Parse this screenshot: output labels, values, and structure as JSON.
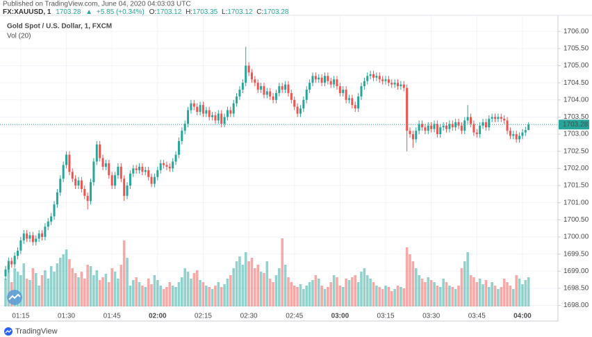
{
  "header": {
    "published": "Published on TradingView.com, June 04, 2020 04:03:03 UTC",
    "symbol": "FX:XAUUSD, 1",
    "last": "1703.28",
    "change_arrow": "▲",
    "change": "+5.85 (+0.34%)",
    "ohlc": [
      {
        "label": "O:",
        "value": "1703.12"
      },
      {
        "label": "H:",
        "value": "1703.35"
      },
      {
        "label": "L:",
        "value": "1703.12"
      },
      {
        "label": "C:",
        "value": "1703.28"
      }
    ]
  },
  "footer": {
    "brand": "TradingView"
  },
  "chart_data": {
    "type": "candlestick",
    "title": "Gold Spot / U.S. Dollar, 1, FXCM",
    "volume_label": "Vol (20)",
    "up_color": "#26a69a",
    "down_color": "#ef5350",
    "grid": true,
    "last_price": 1703.28,
    "last_price_color": "#26a69a",
    "ylim": [
      1697.85,
      1706.45
    ],
    "yticks": [
      {
        "value": 1698,
        "label": "1698.00"
      },
      {
        "value": 1698.5,
        "label": "1698.50"
      },
      {
        "value": 1699,
        "label": "1699.00"
      },
      {
        "value": 1699.5,
        "label": "1699.50"
      },
      {
        "value": 1700,
        "label": "1700.00"
      },
      {
        "value": 1700.5,
        "label": "1700.50"
      },
      {
        "value": 1701,
        "label": "1701.00"
      },
      {
        "value": 1701.5,
        "label": "1701.50"
      },
      {
        "value": 1702,
        "label": "1702.00"
      },
      {
        "value": 1702.5,
        "label": "1702.50"
      },
      {
        "value": 1703,
        "label": "1703.00"
      },
      {
        "value": 1703.5,
        "label": "1703.50"
      },
      {
        "value": 1704,
        "label": "1704.00"
      },
      {
        "value": 1704.5,
        "label": "1704.50"
      },
      {
        "value": 1705,
        "label": "1705.00"
      },
      {
        "value": 1705.5,
        "label": "1705.50"
      },
      {
        "value": 1706,
        "label": "1706.00"
      }
    ],
    "categories": [
      null,
      null,
      null,
      null,
      null,
      "01:15",
      null,
      null,
      null,
      null,
      null,
      null,
      null,
      null,
      null,
      null,
      null,
      null,
      null,
      null,
      "01:30",
      null,
      null,
      null,
      null,
      null,
      null,
      null,
      null,
      null,
      null,
      null,
      null,
      null,
      null,
      "01:45",
      null,
      null,
      null,
      null,
      null,
      null,
      null,
      null,
      null,
      null,
      null,
      null,
      null,
      null,
      "02:00",
      null,
      null,
      null,
      null,
      null,
      null,
      null,
      null,
      null,
      null,
      null,
      null,
      null,
      null,
      "02:15",
      null,
      null,
      null,
      null,
      null,
      null,
      null,
      null,
      null,
      null,
      null,
      null,
      null,
      null,
      "02:30",
      null,
      null,
      null,
      null,
      null,
      null,
      null,
      null,
      null,
      null,
      null,
      null,
      null,
      null,
      "02:45",
      null,
      null,
      null,
      null,
      null,
      null,
      null,
      null,
      null,
      null,
      null,
      null,
      null,
      null,
      "03:00",
      null,
      null,
      null,
      null,
      null,
      null,
      null,
      null,
      null,
      null,
      null,
      null,
      null,
      null,
      "03:15",
      null,
      null,
      null,
      null,
      null,
      null,
      null,
      null,
      null,
      null,
      null,
      null,
      null,
      null,
      "03:30",
      null,
      null,
      null,
      null,
      null,
      null,
      null,
      null,
      null,
      null,
      null,
      null,
      null,
      null,
      "03:45",
      null,
      null,
      null,
      null,
      null,
      null,
      null,
      null,
      null,
      null,
      null,
      null,
      null,
      null,
      "04:00",
      null,
      null
    ],
    "open": [
      1698.85,
      1699.05,
      1699.3,
      1699.2,
      1699.45,
      1699.6,
      1699.9,
      1700.1,
      1699.95,
      1700.05,
      1699.85,
      1699.95,
      1700.1,
      1700.0,
      1700.3,
      1700.45,
      1700.6,
      1700.95,
      1701.3,
      1701.7,
      1702.1,
      1702.4,
      1701.9,
      1701.7,
      1701.5,
      1701.65,
      1701.4,
      1701.2,
      1701.05,
      1701.6,
      1702.2,
      1702.7,
      1702.3,
      1702.05,
      1702.15,
      1701.8,
      1701.5,
      1701.8,
      1702.05,
      1701.7,
      1701.2,
      1701.5,
      1701.85,
      1702.0,
      1701.95,
      1702.05,
      1701.9,
      1701.95,
      1701.75,
      1701.55,
      1701.75,
      1701.95,
      1702.15,
      1702.1,
      1702.05,
      1702.0,
      1702.2,
      1702.4,
      1702.8,
      1703.1,
      1703.3,
      1703.7,
      1703.9,
      1703.8,
      1703.65,
      1703.85,
      1703.6,
      1703.7,
      1703.5,
      1703.55,
      1703.4,
      1703.6,
      1703.3,
      1703.5,
      1703.7,
      1703.6,
      1703.9,
      1704.1,
      1704.3,
      1704.5,
      1705.0,
      1704.8,
      1704.6,
      1704.5,
      1704.3,
      1704.4,
      1704.15,
      1704.25,
      1704.1,
      1704.0,
      1704.2,
      1704.4,
      1704.3,
      1704.45,
      1704.2,
      1704.0,
      1703.8,
      1703.6,
      1703.75,
      1704.0,
      1704.3,
      1704.5,
      1704.7,
      1704.6,
      1704.65,
      1704.5,
      1704.7,
      1704.55,
      1704.45,
      1704.6,
      1704.4,
      1704.2,
      1704.3,
      1704.0,
      1704.05,
      1703.85,
      1703.75,
      1704.1,
      1704.4,
      1704.55,
      1704.7,
      1704.75,
      1704.65,
      1704.7,
      1704.6,
      1704.55,
      1704.6,
      1704.5,
      1704.45,
      1704.5,
      1704.4,
      1704.45,
      1704.35,
      1703.1,
      1703.0,
      1702.85,
      1703.1,
      1703.3,
      1703.2,
      1703.1,
      1703.25,
      1703.15,
      1703.3,
      1703.0,
      1703.2,
      1703.25,
      1703.15,
      1703.3,
      1703.2,
      1703.35,
      1703.25,
      1703.1,
      1703.4,
      1703.5,
      1703.3,
      1703.05,
      1703.0,
      1703.25,
      1703.35,
      1703.2,
      1703.45,
      1703.5,
      1703.45,
      1703.5,
      1703.45,
      1703.4,
      1703.1,
      1702.95,
      1703.0,
      1702.85,
      1702.95,
      1703.05,
      1703.12
    ],
    "high": [
      1699.15,
      1699.4,
      1699.4,
      1699.55,
      1699.7,
      1700.0,
      1700.2,
      1700.2,
      1700.15,
      1700.15,
      1700.05,
      1700.2,
      1700.2,
      1700.4,
      1700.55,
      1700.7,
      1701.05,
      1701.4,
      1701.8,
      1702.2,
      1702.5,
      1702.5,
      1702.0,
      1701.8,
      1701.75,
      1701.75,
      1701.5,
      1701.3,
      1701.7,
      1702.3,
      1702.8,
      1702.8,
      1702.4,
      1702.25,
      1702.25,
      1701.9,
      1701.9,
      1702.15,
      1702.15,
      1701.8,
      1701.6,
      1701.95,
      1702.1,
      1702.1,
      1702.15,
      1702.15,
      1702.05,
      1702.05,
      1701.85,
      1701.85,
      1702.05,
      1702.25,
      1702.25,
      1702.2,
      1702.15,
      1702.3,
      1702.5,
      1702.9,
      1703.2,
      1703.4,
      1703.8,
      1704.0,
      1704.0,
      1703.9,
      1703.95,
      1703.95,
      1703.8,
      1703.8,
      1703.65,
      1703.65,
      1703.7,
      1703.7,
      1703.6,
      1703.8,
      1703.8,
      1704.0,
      1704.2,
      1704.4,
      1704.6,
      1705.55,
      1705.1,
      1704.9,
      1704.7,
      1704.6,
      1704.5,
      1704.5,
      1704.35,
      1704.35,
      1704.2,
      1704.3,
      1704.5,
      1704.5,
      1704.55,
      1704.55,
      1704.3,
      1704.1,
      1703.9,
      1703.85,
      1704.1,
      1704.4,
      1704.6,
      1704.8,
      1704.8,
      1704.75,
      1704.75,
      1704.8,
      1704.8,
      1704.65,
      1704.7,
      1704.7,
      1704.5,
      1704.4,
      1704.4,
      1704.15,
      1704.15,
      1703.95,
      1704.2,
      1704.5,
      1704.65,
      1704.8,
      1704.85,
      1704.85,
      1704.8,
      1704.8,
      1704.7,
      1704.7,
      1704.7,
      1704.6,
      1704.6,
      1704.6,
      1704.55,
      1704.55,
      1704.45,
      1703.2,
      1703.1,
      1703.2,
      1703.4,
      1703.4,
      1703.3,
      1703.35,
      1703.35,
      1703.4,
      1703.4,
      1703.3,
      1703.35,
      1703.35,
      1703.4,
      1703.4,
      1703.45,
      1703.45,
      1703.35,
      1703.5,
      1703.85,
      1703.6,
      1703.4,
      1703.15,
      1703.35,
      1703.45,
      1703.45,
      1703.55,
      1703.6,
      1703.6,
      1703.6,
      1703.6,
      1703.55,
      1703.5,
      1703.2,
      1703.1,
      1703.1,
      1703.05,
      1703.15,
      1703.22,
      1703.35
    ],
    "low": [
      1698.75,
      1698.95,
      1699.1,
      1699.1,
      1699.35,
      1699.5,
      1699.8,
      1699.85,
      1699.85,
      1699.75,
      1699.75,
      1699.85,
      1699.9,
      1699.9,
      1700.2,
      1700.35,
      1700.5,
      1700.85,
      1701.2,
      1701.6,
      1702.0,
      1701.8,
      1701.6,
      1701.4,
      1701.4,
      1701.3,
      1701.1,
      1700.8,
      1700.95,
      1701.5,
      1702.1,
      1702.2,
      1701.95,
      1701.95,
      1701.7,
      1701.4,
      1701.4,
      1701.7,
      1701.6,
      1701.05,
      1701.1,
      1701.4,
      1701.75,
      1701.85,
      1701.85,
      1701.8,
      1701.8,
      1701.65,
      1701.45,
      1701.45,
      1701.65,
      1701.85,
      1702.0,
      1701.95,
      1701.9,
      1701.9,
      1702.1,
      1702.3,
      1702.7,
      1703.0,
      1703.2,
      1703.6,
      1703.7,
      1703.55,
      1703.55,
      1703.5,
      1703.5,
      1703.4,
      1703.4,
      1703.3,
      1703.3,
      1703.2,
      1703.2,
      1703.4,
      1703.5,
      1703.5,
      1703.8,
      1704.0,
      1704.2,
      1704.4,
      1704.7,
      1704.5,
      1704.4,
      1704.2,
      1704.2,
      1704.05,
      1704.05,
      1704.0,
      1703.9,
      1703.9,
      1704.1,
      1704.2,
      1704.2,
      1704.1,
      1703.9,
      1703.7,
      1703.5,
      1703.5,
      1703.65,
      1703.9,
      1704.2,
      1704.4,
      1704.5,
      1704.5,
      1704.4,
      1704.4,
      1704.45,
      1704.35,
      1704.35,
      1704.3,
      1704.1,
      1704.1,
      1703.9,
      1703.9,
      1703.75,
      1703.65,
      1703.65,
      1704.0,
      1704.3,
      1704.45,
      1704.6,
      1704.55,
      1704.55,
      1704.5,
      1704.45,
      1704.45,
      1704.4,
      1704.35,
      1704.35,
      1704.3,
      1704.3,
      1704.25,
      1702.5,
      1702.9,
      1702.6,
      1702.75,
      1703.0,
      1703.1,
      1703.0,
      1703.0,
      1703.05,
      1703.05,
      1702.9,
      1702.9,
      1703.1,
      1703.05,
      1703.05,
      1703.1,
      1703.1,
      1703.15,
      1703.0,
      1703.0,
      1703.3,
      1703.2,
      1702.95,
      1702.9,
      1702.9,
      1703.15,
      1703.1,
      1703.1,
      1703.35,
      1703.35,
      1703.35,
      1703.35,
      1703.3,
      1703.0,
      1702.85,
      1702.85,
      1702.75,
      1702.75,
      1702.85,
      1702.95,
      1703.12
    ],
    "close": [
      1699.05,
      1699.3,
      1699.2,
      1699.45,
      1699.6,
      1699.9,
      1700.1,
      1699.95,
      1700.05,
      1699.85,
      1699.95,
      1700.1,
      1700.0,
      1700.3,
      1700.45,
      1700.6,
      1700.95,
      1701.3,
      1701.7,
      1702.1,
      1702.4,
      1701.9,
      1701.7,
      1701.5,
      1701.65,
      1701.4,
      1701.2,
      1701.05,
      1701.6,
      1702.2,
      1702.7,
      1702.3,
      1702.05,
      1702.15,
      1701.8,
      1701.5,
      1701.8,
      1702.05,
      1701.7,
      1701.2,
      1701.5,
      1701.85,
      1702.0,
      1701.95,
      1702.05,
      1701.9,
      1701.95,
      1701.75,
      1701.55,
      1701.75,
      1701.95,
      1702.15,
      1702.1,
      1702.05,
      1702.0,
      1702.2,
      1702.4,
      1702.8,
      1703.1,
      1703.3,
      1703.7,
      1703.9,
      1703.8,
      1703.65,
      1703.85,
      1703.6,
      1703.7,
      1703.5,
      1703.55,
      1703.4,
      1703.6,
      1703.3,
      1703.5,
      1703.7,
      1703.6,
      1703.9,
      1704.1,
      1704.3,
      1704.5,
      1705.0,
      1704.8,
      1704.6,
      1704.5,
      1704.3,
      1704.4,
      1704.15,
      1704.25,
      1704.1,
      1704.0,
      1704.2,
      1704.4,
      1704.3,
      1704.45,
      1704.2,
      1704.0,
      1703.8,
      1703.6,
      1703.75,
      1704.0,
      1704.3,
      1704.5,
      1704.7,
      1704.6,
      1704.65,
      1704.5,
      1704.7,
      1704.55,
      1704.45,
      1704.6,
      1704.4,
      1704.2,
      1704.3,
      1704.0,
      1704.05,
      1703.85,
      1703.75,
      1704.1,
      1704.4,
      1704.55,
      1704.7,
      1704.75,
      1704.65,
      1704.7,
      1704.6,
      1704.55,
      1704.6,
      1704.5,
      1704.45,
      1704.5,
      1704.4,
      1704.45,
      1704.35,
      1703.1,
      1703.0,
      1702.85,
      1703.1,
      1703.3,
      1703.2,
      1703.1,
      1703.25,
      1703.15,
      1703.3,
      1703.0,
      1703.2,
      1703.25,
      1703.15,
      1703.3,
      1703.2,
      1703.35,
      1703.25,
      1703.1,
      1703.4,
      1703.5,
      1703.3,
      1703.05,
      1703.0,
      1703.25,
      1703.35,
      1703.2,
      1703.45,
      1703.5,
      1703.45,
      1703.5,
      1703.45,
      1703.4,
      1703.1,
      1702.95,
      1703.0,
      1702.85,
      1702.95,
      1703.05,
      1703.12,
      1703.28
    ],
    "volume": [
      40,
      60,
      35,
      55,
      50,
      45,
      62,
      40,
      38,
      55,
      48,
      30,
      45,
      52,
      40,
      58,
      50,
      62,
      70,
      75,
      82,
      68,
      55,
      48,
      42,
      50,
      40,
      60,
      58,
      45,
      52,
      38,
      42,
      47,
      35,
      55,
      50,
      40,
      60,
      95,
      70,
      30,
      38,
      42,
      35,
      30,
      28,
      40,
      32,
      45,
      38,
      30,
      25,
      28,
      35,
      30,
      28,
      35,
      42,
      55,
      50,
      40,
      48,
      52,
      38,
      35,
      30,
      28,
      25,
      30,
      35,
      28,
      32,
      40,
      45,
      55,
      65,
      72,
      60,
      78,
      65,
      70,
      55,
      60,
      50,
      48,
      65,
      40,
      35,
      45,
      55,
      98,
      60,
      42,
      35,
      30,
      28,
      32,
      25,
      30,
      35,
      38,
      45,
      40,
      30,
      25,
      28,
      35,
      45,
      42,
      30,
      28,
      40,
      38,
      42,
      45,
      35,
      50,
      55,
      45,
      40,
      35,
      30,
      28,
      25,
      30,
      28,
      22,
      25,
      30,
      28,
      26,
      85,
      75,
      65,
      55,
      45,
      40,
      35,
      42,
      38,
      35,
      30,
      28,
      40,
      35,
      30,
      28,
      25,
      30,
      55,
      65,
      78,
      45,
      42,
      35,
      40,
      32,
      38,
      28,
      35,
      30,
      25,
      28,
      40,
      35,
      30,
      25,
      45,
      40,
      32,
      38,
      42
    ]
  }
}
